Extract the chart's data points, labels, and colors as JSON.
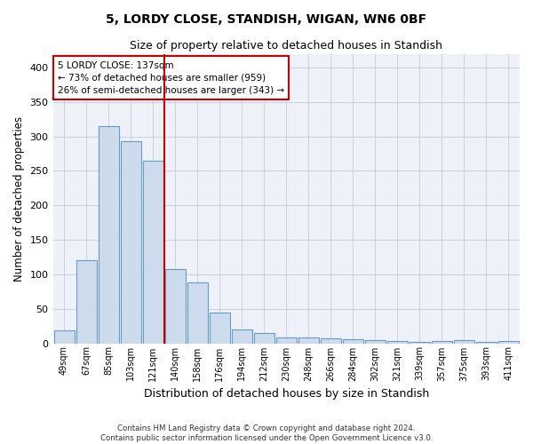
{
  "title": "5, LORDY CLOSE, STANDISH, WIGAN, WN6 0BF",
  "subtitle": "Size of property relative to detached houses in Standish",
  "xlabel": "Distribution of detached houses by size in Standish",
  "ylabel": "Number of detached properties",
  "categories": [
    "49sqm",
    "67sqm",
    "85sqm",
    "103sqm",
    "121sqm",
    "140sqm",
    "158sqm",
    "176sqm",
    "194sqm",
    "212sqm",
    "230sqm",
    "248sqm",
    "266sqm",
    "284sqm",
    "302sqm",
    "321sqm",
    "339sqm",
    "357sqm",
    "375sqm",
    "393sqm",
    "411sqm"
  ],
  "values": [
    19,
    120,
    315,
    293,
    265,
    108,
    88,
    44,
    20,
    15,
    8,
    8,
    7,
    6,
    5,
    3,
    2,
    3,
    4,
    2,
    3
  ],
  "bar_color": "#ccdcec",
  "bar_edge_color": "#6699cc",
  "vline_x": 4.5,
  "annotation_line1": "5 LORDY CLOSE: 137sqm",
  "annotation_line2": "← 73% of detached houses are smaller (959)",
  "annotation_line3": "26% of semi-detached houses are larger (343) →",
  "annotation_box_color": "#ffffff",
  "annotation_box_edge": "#cc0000",
  "vline_color": "#cc0000",
  "ylim": [
    0,
    420
  ],
  "yticks": [
    0,
    50,
    100,
    150,
    200,
    250,
    300,
    350,
    400
  ],
  "grid_color": "#c8d0dc",
  "footer_line1": "Contains HM Land Registry data © Crown copyright and database right 2024.",
  "footer_line2": "Contains public sector information licensed under the Open Government Licence v3.0.",
  "background_color": "#eef2f8",
  "title_fontsize": 10,
  "subtitle_fontsize": 9,
  "xlabel_fontsize": 9,
  "ylabel_fontsize": 8.5
}
